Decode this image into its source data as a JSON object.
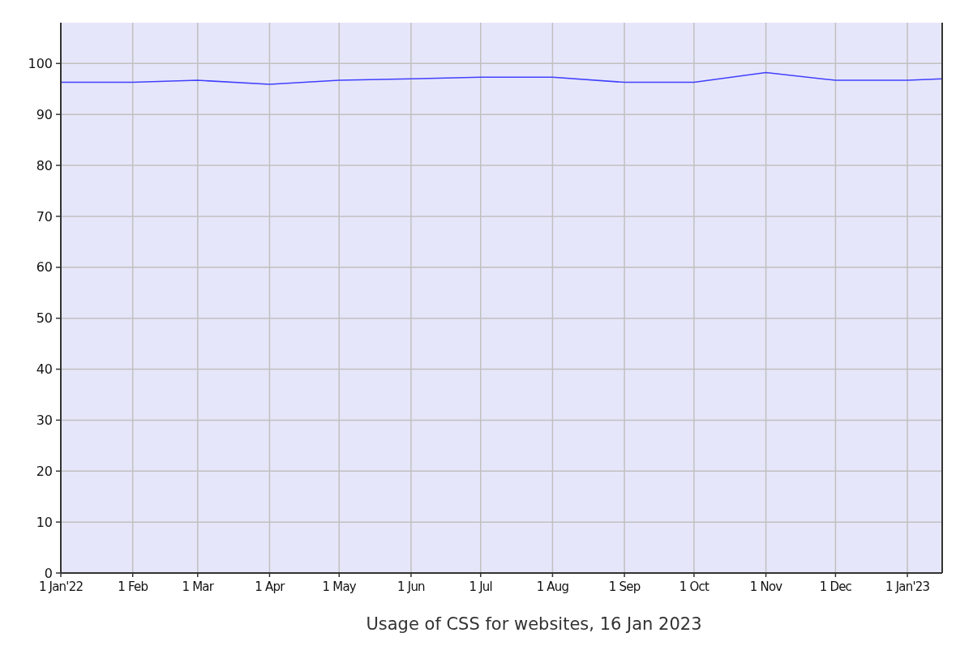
{
  "chart_data": {
    "type": "line",
    "title": "Usage of CSS for websites, 16 Jan 2023",
    "x": [
      "2022-01-01",
      "2022-02-01",
      "2022-03-01",
      "2022-04-01",
      "2022-05-01",
      "2022-06-01",
      "2022-07-01",
      "2022-08-01",
      "2022-09-01",
      "2022-10-01",
      "2022-11-01",
      "2022-12-01",
      "2023-01-01",
      "2023-01-16"
    ],
    "series": [
      {
        "color": "#4040ff",
        "values": [
          96.3,
          96.3,
          96.7,
          95.9,
          96.7,
          97.0,
          97.3,
          97.3,
          96.3,
          96.3,
          98.2,
          96.7,
          96.7,
          97.0
        ]
      }
    ],
    "xlim": [
      "2022-01-01",
      "2023-01-16"
    ],
    "xticks": [
      {
        "value": "2022-01-01",
        "label": "1 Jan'22"
      },
      {
        "value": "2022-02-01",
        "label": "1 Feb"
      },
      {
        "value": "2022-03-01",
        "label": "1 Mar"
      },
      {
        "value": "2022-04-01",
        "label": "1 Apr"
      },
      {
        "value": "2022-05-01",
        "label": "1 May"
      },
      {
        "value": "2022-06-01",
        "label": "1 Jun"
      },
      {
        "value": "2022-07-01",
        "label": "1 Jul"
      },
      {
        "value": "2022-08-01",
        "label": "1 Aug"
      },
      {
        "value": "2022-09-01",
        "label": "1 Sep"
      },
      {
        "value": "2022-10-01",
        "label": "1 Oct"
      },
      {
        "value": "2022-11-01",
        "label": "1 Nov"
      },
      {
        "value": "2022-12-01",
        "label": "1 Dec"
      },
      {
        "value": "2023-01-01",
        "label": "1 Jan'23"
      }
    ],
    "ylim": [
      0,
      108
    ],
    "yticks": [
      0,
      10,
      20,
      30,
      40,
      50,
      60,
      70,
      80,
      90,
      100
    ],
    "grid": true
  }
}
